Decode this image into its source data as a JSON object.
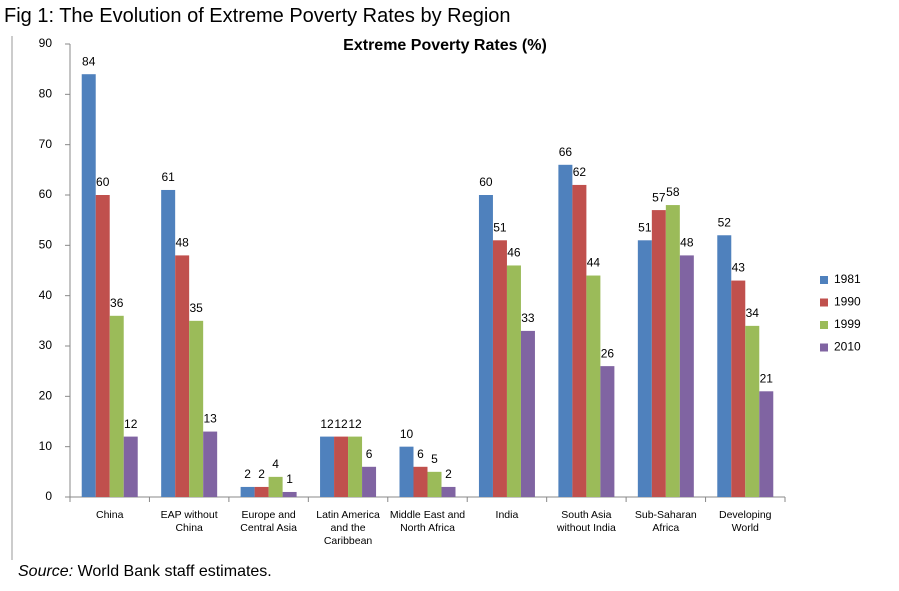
{
  "figure_title": "Fig 1: The Evolution of Extreme Poverty Rates by Region",
  "source": {
    "label": "Source:",
    "text": "World Bank staff estimates."
  },
  "chart_data": {
    "type": "bar",
    "title": "Extreme Poverty Rates (%)",
    "categories": [
      "China",
      "EAP without China",
      "Europe and Central Asia",
      "Latin America and the Caribbean",
      "Middle East and North Africa",
      "India",
      "South Asia without India",
      "Sub-Saharan Africa",
      "Developing World"
    ],
    "series": [
      {
        "name": "1981",
        "color": "#4f81bd",
        "values": [
          84,
          61,
          2,
          12,
          10,
          60,
          66,
          51,
          52
        ]
      },
      {
        "name": "1990",
        "color": "#c0504d",
        "values": [
          60,
          48,
          2,
          12,
          6,
          51,
          62,
          57,
          43
        ]
      },
      {
        "name": "1999",
        "color": "#9bbb59",
        "values": [
          36,
          35,
          4,
          12,
          5,
          46,
          44,
          58,
          34
        ]
      },
      {
        "name": "2010",
        "color": "#8064a2",
        "values": [
          12,
          13,
          1,
          6,
          2,
          33,
          26,
          48,
          21
        ]
      }
    ],
    "ylim": [
      0,
      90
    ],
    "yticks": [
      0,
      10,
      20,
      30,
      40,
      50,
      60,
      70,
      80,
      90
    ],
    "grid": false,
    "legend": "right"
  }
}
